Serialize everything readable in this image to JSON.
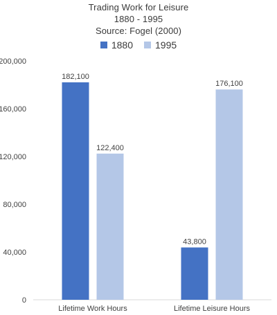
{
  "chart_data": {
    "type": "bar",
    "title": "Trading Work for Leisure",
    "subtitle_lines": [
      "1880 - 1995",
      "Source: Fogel (2000)"
    ],
    "categories": [
      "Lifetime Work Hours",
      "Lifetime Leisure Hours"
    ],
    "series": [
      {
        "name": "1880",
        "values": [
          182100,
          43800
        ],
        "color": "#4472c4"
      },
      {
        "name": "1995",
        "values": [
          122400,
          176100
        ],
        "color": "#b4c7e7"
      }
    ],
    "data_labels": [
      [
        "182,100",
        "43,800"
      ],
      [
        "122,400",
        "176,100"
      ]
    ],
    "y_ticks": [
      0,
      40000,
      80000,
      120000,
      160000,
      200000
    ],
    "y_tick_labels": [
      "0",
      "40,000",
      "80,000",
      "120,000",
      "160,000",
      "200,000"
    ],
    "ylim": [
      0,
      200000
    ],
    "xlabel": "",
    "ylabel": "",
    "grid": false,
    "legend_position": "top"
  }
}
